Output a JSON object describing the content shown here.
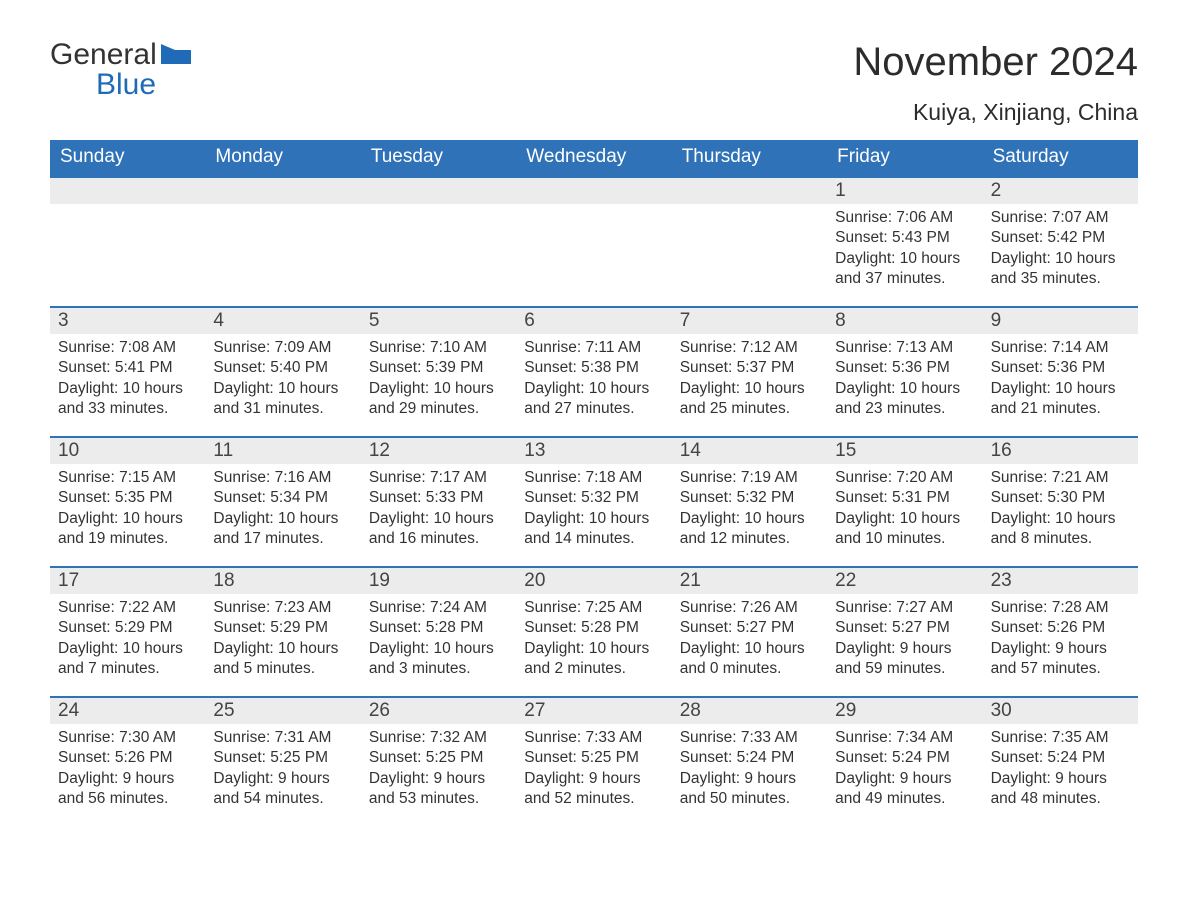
{
  "logo": {
    "word1": "General",
    "word2": "Blue",
    "flag_color": "#1f6bb8"
  },
  "title": "November 2024",
  "location": "Kuiya, Xinjiang, China",
  "colors": {
    "header_bg": "#2f72b8",
    "header_text": "#ffffff",
    "row_border": "#2f72b8",
    "daynum_bg": "#ececec",
    "text": "#333333",
    "logo_blue": "#1f6bb8",
    "background": "#ffffff"
  },
  "typography": {
    "title_fontsize": 40,
    "location_fontsize": 23,
    "dow_fontsize": 19,
    "daynum_fontsize": 19,
    "detail_fontsize": 15.5,
    "font_family": "Arial"
  },
  "layout": {
    "columns": 7,
    "weeks": 5,
    "leading_blanks": 5
  },
  "days_of_week": [
    "Sunday",
    "Monday",
    "Tuesday",
    "Wednesday",
    "Thursday",
    "Friday",
    "Saturday"
  ],
  "labels": {
    "sunrise": "Sunrise:",
    "sunset": "Sunset:",
    "daylight": "Daylight:"
  },
  "days": [
    {
      "n": 1,
      "sunrise": "7:06 AM",
      "sunset": "5:43 PM",
      "daylight": "10 hours and 37 minutes."
    },
    {
      "n": 2,
      "sunrise": "7:07 AM",
      "sunset": "5:42 PM",
      "daylight": "10 hours and 35 minutes."
    },
    {
      "n": 3,
      "sunrise": "7:08 AM",
      "sunset": "5:41 PM",
      "daylight": "10 hours and 33 minutes."
    },
    {
      "n": 4,
      "sunrise": "7:09 AM",
      "sunset": "5:40 PM",
      "daylight": "10 hours and 31 minutes."
    },
    {
      "n": 5,
      "sunrise": "7:10 AM",
      "sunset": "5:39 PM",
      "daylight": "10 hours and 29 minutes."
    },
    {
      "n": 6,
      "sunrise": "7:11 AM",
      "sunset": "5:38 PM",
      "daylight": "10 hours and 27 minutes."
    },
    {
      "n": 7,
      "sunrise": "7:12 AM",
      "sunset": "5:37 PM",
      "daylight": "10 hours and 25 minutes."
    },
    {
      "n": 8,
      "sunrise": "7:13 AM",
      "sunset": "5:36 PM",
      "daylight": "10 hours and 23 minutes."
    },
    {
      "n": 9,
      "sunrise": "7:14 AM",
      "sunset": "5:36 PM",
      "daylight": "10 hours and 21 minutes."
    },
    {
      "n": 10,
      "sunrise": "7:15 AM",
      "sunset": "5:35 PM",
      "daylight": "10 hours and 19 minutes."
    },
    {
      "n": 11,
      "sunrise": "7:16 AM",
      "sunset": "5:34 PM",
      "daylight": "10 hours and 17 minutes."
    },
    {
      "n": 12,
      "sunrise": "7:17 AM",
      "sunset": "5:33 PM",
      "daylight": "10 hours and 16 minutes."
    },
    {
      "n": 13,
      "sunrise": "7:18 AM",
      "sunset": "5:32 PM",
      "daylight": "10 hours and 14 minutes."
    },
    {
      "n": 14,
      "sunrise": "7:19 AM",
      "sunset": "5:32 PM",
      "daylight": "10 hours and 12 minutes."
    },
    {
      "n": 15,
      "sunrise": "7:20 AM",
      "sunset": "5:31 PM",
      "daylight": "10 hours and 10 minutes."
    },
    {
      "n": 16,
      "sunrise": "7:21 AM",
      "sunset": "5:30 PM",
      "daylight": "10 hours and 8 minutes."
    },
    {
      "n": 17,
      "sunrise": "7:22 AM",
      "sunset": "5:29 PM",
      "daylight": "10 hours and 7 minutes."
    },
    {
      "n": 18,
      "sunrise": "7:23 AM",
      "sunset": "5:29 PM",
      "daylight": "10 hours and 5 minutes."
    },
    {
      "n": 19,
      "sunrise": "7:24 AM",
      "sunset": "5:28 PM",
      "daylight": "10 hours and 3 minutes."
    },
    {
      "n": 20,
      "sunrise": "7:25 AM",
      "sunset": "5:28 PM",
      "daylight": "10 hours and 2 minutes."
    },
    {
      "n": 21,
      "sunrise": "7:26 AM",
      "sunset": "5:27 PM",
      "daylight": "10 hours and 0 minutes."
    },
    {
      "n": 22,
      "sunrise": "7:27 AM",
      "sunset": "5:27 PM",
      "daylight": "9 hours and 59 minutes."
    },
    {
      "n": 23,
      "sunrise": "7:28 AM",
      "sunset": "5:26 PM",
      "daylight": "9 hours and 57 minutes."
    },
    {
      "n": 24,
      "sunrise": "7:30 AM",
      "sunset": "5:26 PM",
      "daylight": "9 hours and 56 minutes."
    },
    {
      "n": 25,
      "sunrise": "7:31 AM",
      "sunset": "5:25 PM",
      "daylight": "9 hours and 54 minutes."
    },
    {
      "n": 26,
      "sunrise": "7:32 AM",
      "sunset": "5:25 PM",
      "daylight": "9 hours and 53 minutes."
    },
    {
      "n": 27,
      "sunrise": "7:33 AM",
      "sunset": "5:25 PM",
      "daylight": "9 hours and 52 minutes."
    },
    {
      "n": 28,
      "sunrise": "7:33 AM",
      "sunset": "5:24 PM",
      "daylight": "9 hours and 50 minutes."
    },
    {
      "n": 29,
      "sunrise": "7:34 AM",
      "sunset": "5:24 PM",
      "daylight": "9 hours and 49 minutes."
    },
    {
      "n": 30,
      "sunrise": "7:35 AM",
      "sunset": "5:24 PM",
      "daylight": "9 hours and 48 minutes."
    }
  ]
}
